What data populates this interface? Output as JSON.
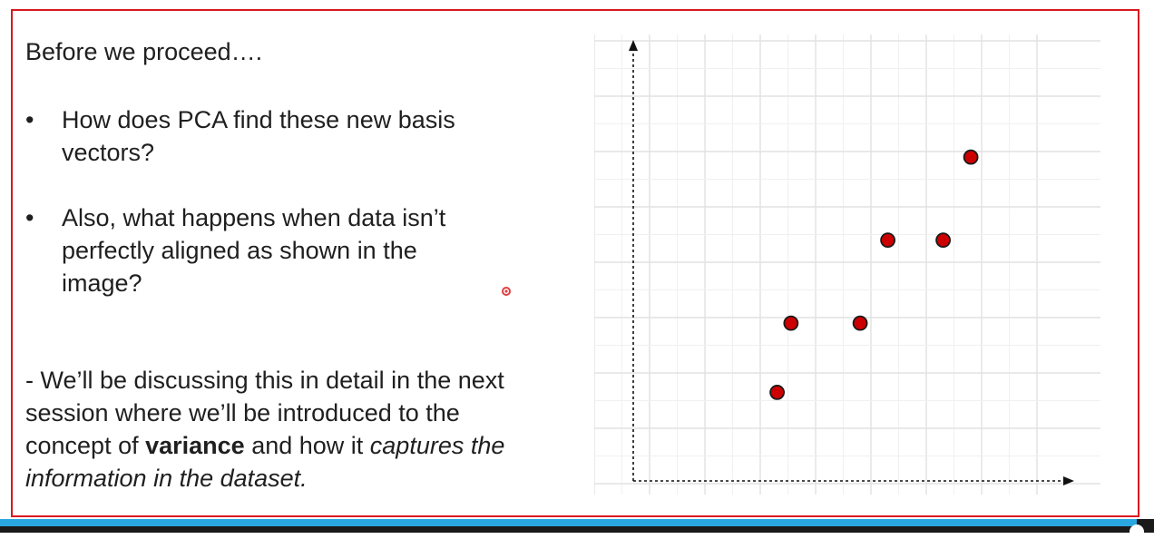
{
  "slide": {
    "heading": "Before we proceed….",
    "bullets": [
      {
        "marker": "•",
        "text": "How does PCA find these new basis vectors?"
      },
      {
        "marker": "•",
        "text": "Also, what happens when data isn’t perfectly aligned as shown in the image?"
      }
    ],
    "conclusion": {
      "part1": " - We’ll be discussing this in detail in the next session where we’ll be introduced to the concept of ",
      "bold": "variance",
      "part2": " and how it ",
      "italic": "captures the information in the dataset."
    }
  },
  "chart_data": {
    "type": "scatter",
    "title": "",
    "xlabel": "",
    "ylabel": "",
    "grid": true,
    "xlim": [
      0,
      8
    ],
    "ylim": [
      0,
      8
    ],
    "x": [
      2.6,
      2.85,
      4.1,
      4.6,
      5.6,
      6.1
    ],
    "y": [
      1.6,
      2.85,
      2.85,
      4.35,
      4.35,
      5.85
    ],
    "marker_color": "#cc0000"
  },
  "video": {
    "progress": 0.985,
    "progress_color": "#29a7e0",
    "track_color": "#1a1a1a"
  },
  "colors": {
    "frame_border": "#d71920",
    "text": "#1f1f1f",
    "grid": "#e6e6e6"
  }
}
